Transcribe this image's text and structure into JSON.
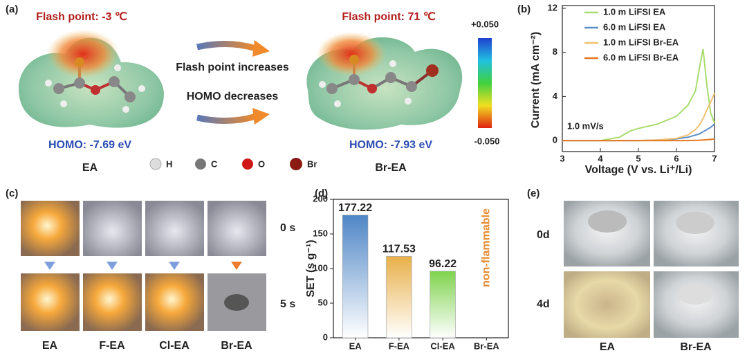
{
  "panel_a": {
    "label": "(a)",
    "molecules": [
      {
        "flash_point": "Flash point: -3 ℃",
        "homo": "HOMO: -7.69 eV",
        "name": "EA"
      },
      {
        "flash_point": "Flash point: 71 ℃",
        "homo": "HOMO: -7.93 eV",
        "name": "Br-EA"
      }
    ],
    "arrows": [
      "Flash point increases",
      "HOMO decreases"
    ],
    "atoms": [
      "H",
      "C",
      "O",
      "Br"
    ],
    "colorbar": {
      "max": "+0.050",
      "min": "-0.050"
    }
  },
  "chart_data": [
    {
      "type": "line",
      "label": "(b)",
      "xlabel": "Voltage (V vs. Li⁺/Li)",
      "ylabel": "Current (mA cm⁻²)",
      "annotation": "1.0 mV/s",
      "x": [
        3,
        3.5,
        4,
        4.5,
        4.8,
        5,
        5.5,
        6,
        6.3,
        6.5,
        6.6,
        6.7,
        6.8,
        6.9,
        7
      ],
      "series": [
        {
          "name": "1.0 m LiFSI EA",
          "color": "#a8dc6e",
          "values": [
            0,
            0,
            0,
            0.3,
            0.9,
            1.1,
            1.5,
            2.2,
            3.2,
            4.5,
            6.5,
            8.3,
            5,
            2.5,
            1.6
          ]
        },
        {
          "name": "6.0 m LiFSI EA",
          "color": "#5b8fc9",
          "values": [
            0,
            0,
            0,
            0,
            0,
            0,
            0.05,
            0.15,
            0.3,
            0.5,
            0.6,
            0.8,
            1,
            1.2,
            1.5
          ]
        },
        {
          "name": "1.0 m LiFSI Br-EA",
          "color": "#f0c070",
          "values": [
            0,
            0,
            0,
            0,
            0,
            0,
            0.05,
            0.2,
            0.5,
            1,
            1.4,
            2,
            2.8,
            3.5,
            4.3
          ]
        },
        {
          "name": "6.0 m LiFSI Br-EA",
          "color": "#e8761e",
          "values": [
            0,
            0,
            0,
            0,
            0,
            0,
            0,
            0,
            0,
            0.02,
            0.03,
            0.05,
            0.08,
            0.1,
            0.15
          ]
        }
      ],
      "xlim": [
        3,
        7
      ],
      "xticks": [
        3,
        4,
        5,
        6,
        7
      ],
      "ylim": [
        -1,
        12
      ],
      "yticks": [
        0,
        4,
        8,
        12
      ],
      "legend": "upper left"
    },
    {
      "type": "bar",
      "label": "(d)",
      "ylabel": "SET (s g⁻¹)",
      "categories": [
        "EA",
        "F-EA",
        "Cl-EA",
        "Br-EA"
      ],
      "values": [
        177.22,
        117.53,
        96.22,
        0
      ],
      "colors": [
        "#4f86c6",
        "#e8b04a",
        "#7fd34e",
        "#888888"
      ],
      "annotation": "non-flammable",
      "ylim": [
        0,
        200
      ],
      "yticks": [
        0,
        50,
        100,
        150,
        200
      ]
    }
  ],
  "panel_c": {
    "label": "(c)",
    "times": [
      "0 s",
      "5 s"
    ],
    "samples": [
      "EA",
      "F-EA",
      "Cl-EA",
      "Br-EA"
    ]
  },
  "panel_e": {
    "label": "(e)",
    "times": [
      "0d",
      "4d"
    ],
    "samples": [
      "EA",
      "Br-EA"
    ]
  }
}
